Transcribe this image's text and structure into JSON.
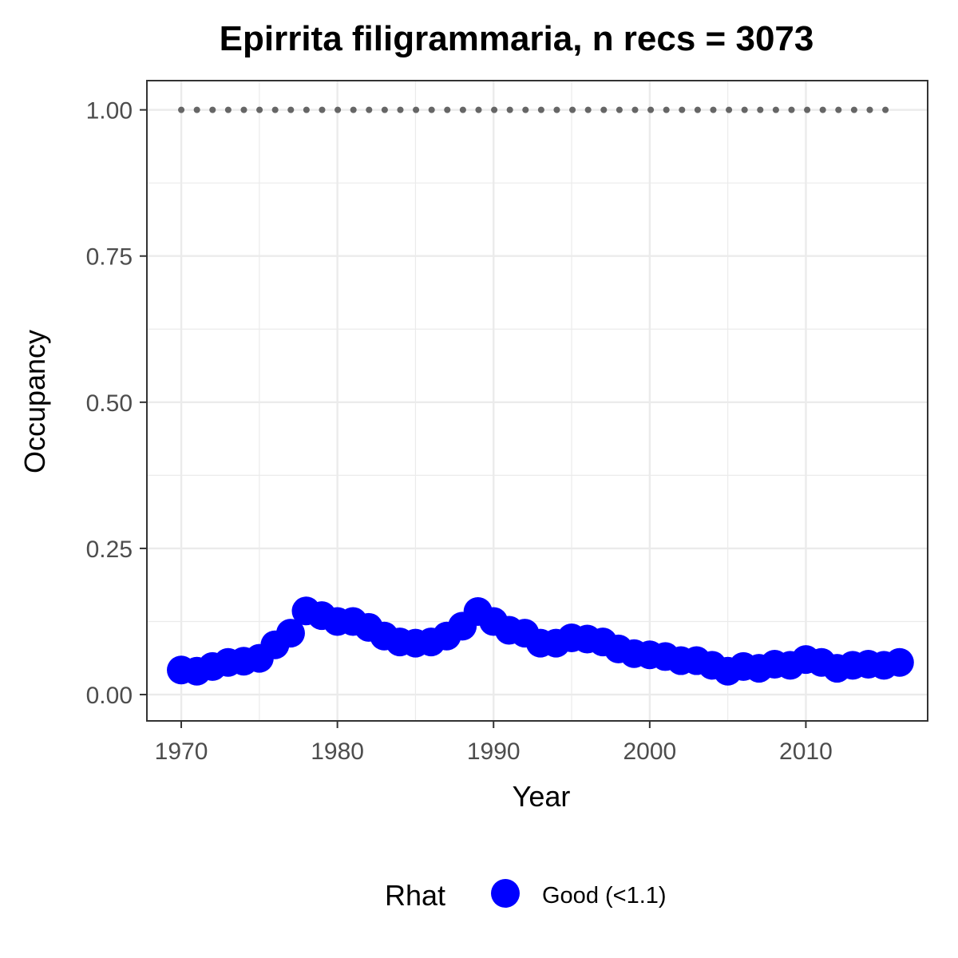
{
  "chart_data": {
    "type": "line",
    "title": "Epirrita filigrammaria, n recs = 3073",
    "xlabel": "Year",
    "ylabel": "Occupancy",
    "xlim": [
      1967.8,
      2017.8
    ],
    "ylim": [
      -0.045,
      1.05
    ],
    "x_ticks": [
      1970,
      1980,
      1990,
      2000,
      2010
    ],
    "y_ticks": [
      0.0,
      0.25,
      0.5,
      0.75,
      1.0
    ],
    "y_tick_labels": [
      "0.00",
      "0.25",
      "0.50",
      "0.75",
      "1.00"
    ],
    "grid": true,
    "legend_position": "bottom",
    "series": [
      {
        "name": "occupancy",
        "color": "#0000ff",
        "x": [
          1970,
          1971,
          1972,
          1973,
          1974,
          1975,
          1976,
          1977,
          1978,
          1979,
          1980,
          1981,
          1982,
          1983,
          1984,
          1985,
          1986,
          1987,
          1988,
          1989,
          1990,
          1991,
          1992,
          1993,
          1994,
          1995,
          1996,
          1997,
          1998,
          1999,
          2000,
          2001,
          2002,
          2003,
          2004,
          2005,
          2006,
          2007,
          2008,
          2009,
          2010,
          2011,
          2012,
          2013,
          2014,
          2015,
          2016
        ],
        "y": [
          0.042,
          0.04,
          0.048,
          0.055,
          0.057,
          0.062,
          0.085,
          0.105,
          0.143,
          0.135,
          0.125,
          0.125,
          0.115,
          0.1,
          0.09,
          0.088,
          0.09,
          0.1,
          0.117,
          0.142,
          0.125,
          0.11,
          0.105,
          0.088,
          0.088,
          0.097,
          0.095,
          0.09,
          0.078,
          0.07,
          0.068,
          0.065,
          0.058,
          0.058,
          0.05,
          0.04,
          0.048,
          0.045,
          0.052,
          0.05,
          0.06,
          0.055,
          0.045,
          0.05,
          0.052,
          0.05,
          0.055
        ]
      },
      {
        "name": "reference",
        "color": "#666666",
        "style": "dotted",
        "x": [
          1970,
          1971,
          1972,
          1973,
          1974,
          1975,
          1976,
          1977,
          1978,
          1979,
          1980,
          1981,
          1982,
          1983,
          1984,
          1985,
          1986,
          1987,
          1988,
          1989,
          1990,
          1991,
          1992,
          1993,
          1994,
          1995,
          1996,
          1997,
          1998,
          1999,
          2000,
          2001,
          2002,
          2003,
          2004,
          2005,
          2006,
          2007,
          2008,
          2009,
          2010,
          2011,
          2012,
          2013,
          2014,
          2015,
          2016
        ],
        "y": [
          1,
          1,
          1,
          1,
          1,
          1,
          1,
          1,
          1,
          1,
          1,
          1,
          1,
          1,
          1,
          1,
          1,
          1,
          1,
          1,
          1,
          1,
          1,
          1,
          1,
          1,
          1,
          1,
          1,
          1,
          1,
          1,
          1,
          1,
          1,
          1,
          1,
          1,
          1,
          1,
          1,
          1,
          1,
          1,
          1,
          1,
          1
        ]
      }
    ],
    "legend": {
      "title": "Rhat",
      "entries": [
        {
          "label": "Good (<1.1)",
          "color": "#0000ff"
        }
      ]
    }
  }
}
